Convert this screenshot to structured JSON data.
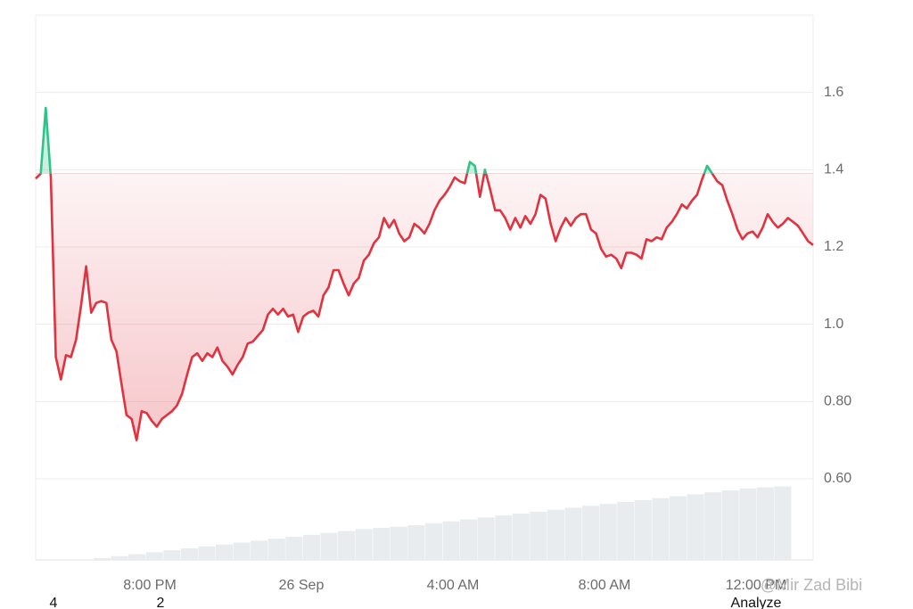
{
  "chart_data": {
    "type": "line",
    "values": [
      1.377,
      1.39,
      1.56,
      1.38,
      0.915,
      0.857,
      0.92,
      0.915,
      0.96,
      1.05,
      1.15,
      1.03,
      1.055,
      1.06,
      1.055,
      0.96,
      0.93,
      0.845,
      0.765,
      0.755,
      0.7,
      0.775,
      0.77,
      0.75,
      0.735,
      0.755,
      0.765,
      0.775,
      0.79,
      0.82,
      0.87,
      0.915,
      0.925,
      0.905,
      0.925,
      0.915,
      0.94,
      0.905,
      0.89,
      0.87,
      0.895,
      0.915,
      0.95,
      0.955,
      0.97,
      0.985,
      1.025,
      1.04,
      1.025,
      1.04,
      1.02,
      1.025,
      0.98,
      1.02,
      1.03,
      1.035,
      1.02,
      1.075,
      1.095,
      1.14,
      1.14,
      1.105,
      1.075,
      1.105,
      1.12,
      1.165,
      1.18,
      1.21,
      1.225,
      1.275,
      1.25,
      1.27,
      1.235,
      1.215,
      1.225,
      1.26,
      1.25,
      1.235,
      1.26,
      1.295,
      1.32,
      1.335,
      1.355,
      1.38,
      1.37,
      1.365,
      1.42,
      1.41,
      1.33,
      1.4,
      1.35,
      1.295,
      1.295,
      1.275,
      1.245,
      1.275,
      1.25,
      1.28,
      1.26,
      1.285,
      1.335,
      1.325,
      1.26,
      1.215,
      1.25,
      1.275,
      1.255,
      1.275,
      1.285,
      1.285,
      1.245,
      1.235,
      1.195,
      1.175,
      1.18,
      1.17,
      1.145,
      1.185,
      1.185,
      1.18,
      1.17,
      1.22,
      1.215,
      1.225,
      1.22,
      1.25,
      1.265,
      1.285,
      1.31,
      1.3,
      1.32,
      1.335,
      1.375,
      1.41,
      1.39,
      1.37,
      1.36,
      1.32,
      1.285,
      1.245,
      1.22,
      1.235,
      1.24,
      1.225,
      1.25,
      1.285,
      1.265,
      1.25,
      1.26,
      1.275,
      1.265,
      1.255,
      1.235,
      1.215,
      1.205
    ],
    "baseline": 1.39,
    "color_below": "#e0323f",
    "color_above": "#2fc28a",
    "volume": {
      "color": "#e9ecef",
      "values": [
        0.395,
        0.4,
        0.405,
        0.41,
        0.415,
        0.42,
        0.425,
        0.43,
        0.435,
        0.44,
        0.445,
        0.45,
        0.455,
        0.46,
        0.465,
        0.47,
        0.473,
        0.476,
        0.48,
        0.485,
        0.49,
        0.495,
        0.5,
        0.505,
        0.51,
        0.515,
        0.52,
        0.525,
        0.53,
        0.535,
        0.54,
        0.545,
        0.55,
        0.555,
        0.56,
        0.565,
        0.57,
        0.575,
        0.578,
        0.58
      ]
    },
    "ylim": [
      0.39,
      1.8
    ],
    "yticks": [
      {
        "value": 0.6,
        "label": "0.60"
      },
      {
        "value": 0.8,
        "label": "0.80"
      },
      {
        "value": 1,
        "label": "1.0"
      },
      1.2,
      1.4,
      1.6
    ],
    "xtick_labels": [
      "8:00 PM",
      "26 Sep",
      "4:00 AM",
      "8:00 AM",
      "12:00 PM"
    ],
    "grid": true
  },
  "overlay": {
    "watermark": "@Mir Zad Bibi",
    "bottom_texts": [
      "4",
      "2"
    ],
    "bottom_right": "Analyze"
  }
}
